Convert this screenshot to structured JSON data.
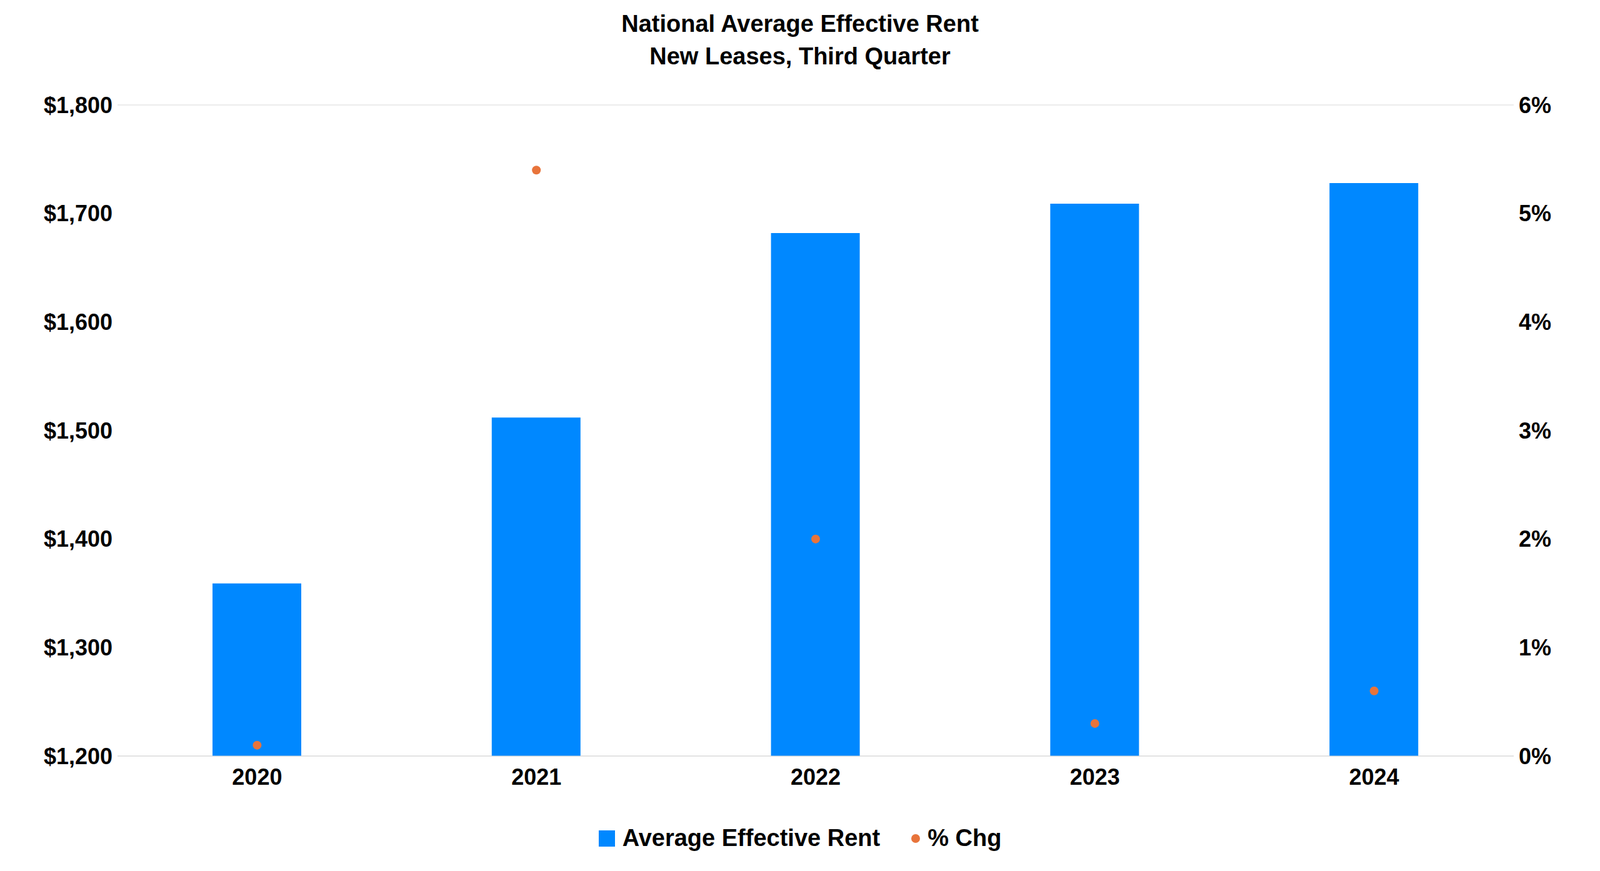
{
  "chart_data": {
    "type": "bar",
    "title": "National Average Effective Rent",
    "subtitle": "New Leases, Third Quarter",
    "categories": [
      "2020",
      "2021",
      "2022",
      "2023",
      "2024"
    ],
    "series": [
      {
        "name": "Average Effective Rent",
        "color": "#0088ff",
        "type": "bar",
        "values": [
          1359,
          1512,
          1682,
          1709,
          1728
        ]
      },
      {
        "name": "% Chg",
        "color": "#e8743b",
        "type": "scatter",
        "marker": "circle",
        "axis": "y2",
        "values": [
          0.1,
          5.4,
          2.0,
          0.3,
          0.6
        ]
      }
    ],
    "ylim": [
      1200,
      1800
    ],
    "yticks": [
      {
        "value": 1200,
        "label": "$1,200"
      },
      {
        "value": 1300,
        "label": "$1,300"
      },
      {
        "value": 1400,
        "label": "$1,400"
      },
      {
        "value": 1500,
        "label": "$1,500"
      },
      {
        "value": 1600,
        "label": "$1,600"
      },
      {
        "value": 1700,
        "label": "$1,700"
      },
      {
        "value": 1800,
        "label": "$1,800"
      }
    ],
    "y2lim": [
      0,
      6
    ],
    "y2ticks": [
      {
        "value": 0,
        "label": "0%"
      },
      {
        "value": 1,
        "label": "1%"
      },
      {
        "value": 2,
        "label": "2%"
      },
      {
        "value": 3,
        "label": "3%"
      },
      {
        "value": 4,
        "label": "4%"
      },
      {
        "value": 5,
        "label": "5%"
      },
      {
        "value": 6,
        "label": "6%"
      }
    ],
    "grid": true,
    "legend": "bottom"
  }
}
